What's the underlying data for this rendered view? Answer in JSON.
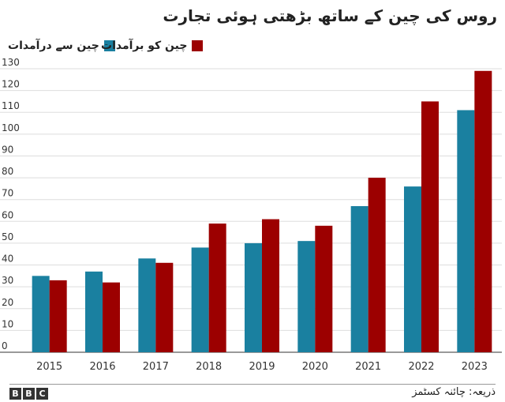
{
  "chart_data": {
    "type": "bar",
    "title": "روس کی چین کے ساتھ بڑھتی ہوئی تجارت",
    "categories": [
      "2015",
      "2016",
      "2017",
      "2018",
      "2019",
      "2020",
      "2021",
      "2022",
      "2023"
    ],
    "series": [
      {
        "name": "چین سے درآمدات",
        "color": "#1a80a0",
        "values": [
          35,
          37,
          43,
          48,
          50,
          51,
          67,
          76,
          111
        ]
      },
      {
        "name": "چین کو برآمدات",
        "color": "#9c0000",
        "values": [
          33,
          32,
          41,
          59,
          61,
          58,
          80,
          115,
          129
        ]
      }
    ],
    "yticks": [
      0,
      10,
      20,
      30,
      40,
      50,
      60,
      70,
      80,
      90,
      100,
      110,
      120,
      130
    ],
    "ylim": [
      0,
      130
    ],
    "xlabel": "",
    "ylabel": "",
    "grid": true
  },
  "source": "ذریعہ: چائنہ کسٹمز",
  "brand": [
    "B",
    "B",
    "C"
  ]
}
